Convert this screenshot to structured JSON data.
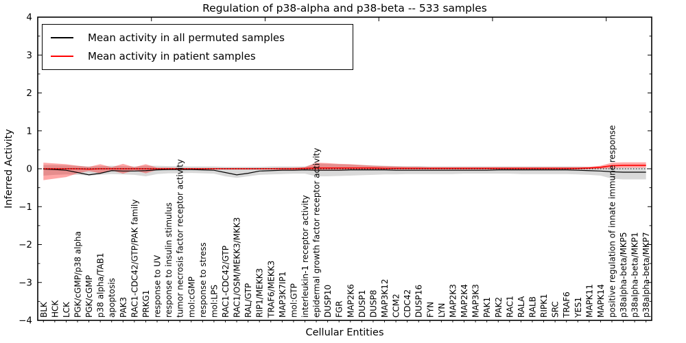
{
  "figure": {
    "title": "Regulation of p38-alpha and p38-beta -- 533 samples",
    "xlabel": "Cellular Entities",
    "ylabel": "Inferred Activity"
  },
  "legend": {
    "entries": [
      {
        "label": "Mean activity in all permuted samples",
        "color": "#000000"
      },
      {
        "label": "Mean activity in patient samples",
        "color": "#ff0000"
      }
    ]
  },
  "colors": {
    "permuted_line": "#000000",
    "permuted_band": "#d9d9d9",
    "patient_line": "#ff0000",
    "patient_band": "#ff0000",
    "baseline": "#000000",
    "frame": "#000000"
  },
  "chart_data": {
    "type": "line",
    "title": "Regulation of p38-alpha and p38-beta -- 533 samples",
    "xlabel": "Cellular Entities",
    "ylabel": "Inferred Activity",
    "ylim": [
      -4,
      4
    ],
    "yticks": [
      -4,
      -3,
      -2,
      -1,
      0,
      1,
      2,
      3,
      4
    ],
    "grid": false,
    "legend_position": "upper left",
    "baseline": {
      "y": 0,
      "style": "dotted",
      "color": "#000000"
    },
    "categories": [
      "BLK",
      "HCK",
      "LCK",
      "PGK/cGMP/p38 alpha",
      "PGK/cGMP",
      "p38 alpha/TAB1",
      "apoptosis",
      "PAK3",
      "RAC1-CDC42/GTP/PAK family",
      "PRKG1",
      "response to UV",
      "response to insulin stimulus",
      "tumor necrosis factor receptor activity",
      "mol:cGMP",
      "response to stress",
      "mol:LPS",
      "RAC1-CDC42/GTP",
      "RAC1/OSM/MEKK3/MKK3",
      "RAL/GTP",
      "RIP1/MEKK3",
      "TRAF6/MEKK3",
      "MAP3K7IP1",
      "mol:GTP",
      "interleukin-1 receptor activity",
      "epidermal growth factor receptor activity",
      "DUSP10",
      "FGR",
      "MAP2K6",
      "DUSP1",
      "DUSP8",
      "MAP3K12",
      "CCM2",
      "CDC42",
      "DUSP16",
      "FYN",
      "LYN",
      "MAP2K3",
      "MAP2K4",
      "MAP3K3",
      "PAK1",
      "PAK2",
      "RAC1",
      "RALA",
      "RALB",
      "RIPK1",
      "SRC",
      "TRAF6",
      "YES1",
      "MAPK11",
      "MAPK14",
      "positive regulation of innate immune response",
      "p38alpha-beta/MKP5",
      "p38alpha-beta/MKP1",
      "p38alpha-beta/MKP7"
    ],
    "series": [
      {
        "name": "Mean activity in all permuted samples",
        "color": "#000000",
        "values": [
          -0.01,
          -0.02,
          -0.04,
          -0.1,
          -0.16,
          -0.12,
          -0.05,
          -0.06,
          -0.06,
          -0.05,
          -0.03,
          -0.02,
          -0.02,
          -0.02,
          -0.03,
          -0.04,
          -0.1,
          -0.16,
          -0.12,
          -0.06,
          -0.05,
          -0.04,
          -0.04,
          -0.03,
          -0.04,
          -0.04,
          -0.04,
          -0.03,
          -0.03,
          -0.03,
          -0.03,
          -0.04,
          -0.04,
          -0.04,
          -0.04,
          -0.04,
          -0.04,
          -0.04,
          -0.04,
          -0.04,
          -0.03,
          -0.03,
          -0.03,
          -0.03,
          -0.03,
          -0.03,
          -0.03,
          -0.04,
          -0.05,
          -0.06,
          -0.08,
          -0.09,
          -0.09,
          -0.09
        ],
        "band_upper": [
          0.1,
          0.1,
          0.09,
          0.08,
          0.06,
          0.07,
          0.08,
          0.07,
          0.06,
          0.08,
          0.08,
          0.07,
          0.07,
          0.06,
          0.06,
          0.06,
          0.05,
          0.05,
          0.05,
          0.05,
          0.06,
          0.06,
          0.06,
          0.06,
          0.14,
          0.13,
          0.12,
          0.11,
          0.1,
          0.09,
          0.08,
          0.07,
          0.07,
          0.07,
          0.06,
          0.06,
          0.06,
          0.06,
          0.06,
          0.06,
          0.06,
          0.06,
          0.06,
          0.06,
          0.06,
          0.06,
          0.06,
          0.06,
          0.05,
          0.04,
          0.03,
          0.03,
          0.03,
          0.03
        ],
        "band_lower": [
          -0.18,
          -0.16,
          -0.15,
          -0.16,
          -0.18,
          -0.16,
          -0.14,
          -0.15,
          -0.16,
          -0.2,
          -0.14,
          -0.12,
          -0.12,
          -0.11,
          -0.12,
          -0.13,
          -0.2,
          -0.24,
          -0.2,
          -0.16,
          -0.15,
          -0.14,
          -0.13,
          -0.13,
          -0.2,
          -0.2,
          -0.19,
          -0.18,
          -0.17,
          -0.16,
          -0.15,
          -0.15,
          -0.14,
          -0.14,
          -0.14,
          -0.14,
          -0.14,
          -0.13,
          -0.13,
          -0.13,
          -0.13,
          -0.13,
          -0.14,
          -0.14,
          -0.14,
          -0.14,
          -0.14,
          -0.15,
          -0.16,
          -0.18,
          -0.26,
          -0.28,
          -0.28,
          -0.28
        ]
      },
      {
        "name": "Mean activity in patient samples",
        "color": "#ff0000",
        "values": [
          0.0,
          0.0,
          0.0,
          0.0,
          -0.01,
          0.0,
          0.0,
          0.0,
          0.0,
          0.0,
          0.0,
          0.0,
          0.0,
          0.0,
          0.0,
          0.0,
          0.0,
          0.0,
          0.0,
          0.0,
          0.0,
          0.0,
          0.0,
          0.01,
          0.02,
          0.02,
          0.02,
          0.02,
          0.02,
          0.02,
          0.01,
          0.01,
          0.01,
          0.01,
          0.01,
          0.01,
          0.01,
          0.01,
          0.01,
          0.01,
          0.01,
          0.01,
          0.01,
          0.01,
          0.01,
          0.01,
          0.01,
          0.01,
          0.02,
          0.04,
          0.08,
          0.09,
          0.09,
          0.09
        ],
        "band_upper": [
          0.16,
          0.14,
          0.12,
          0.08,
          0.05,
          0.12,
          0.04,
          0.13,
          0.04,
          0.12,
          0.03,
          0.03,
          0.02,
          0.02,
          0.02,
          0.02,
          0.02,
          0.02,
          0.02,
          0.02,
          0.02,
          0.03,
          0.03,
          0.04,
          0.16,
          0.15,
          0.13,
          0.12,
          0.1,
          0.08,
          0.07,
          0.06,
          0.05,
          0.05,
          0.04,
          0.04,
          0.04,
          0.04,
          0.04,
          0.04,
          0.04,
          0.04,
          0.04,
          0.04,
          0.04,
          0.04,
          0.04,
          0.04,
          0.05,
          0.08,
          0.16,
          0.17,
          0.17,
          0.17
        ],
        "band_lower": [
          -0.3,
          -0.26,
          -0.22,
          -0.12,
          -0.06,
          -0.12,
          -0.04,
          -0.13,
          -0.04,
          -0.12,
          -0.03,
          -0.03,
          -0.02,
          -0.02,
          -0.02,
          -0.02,
          -0.02,
          -0.02,
          -0.02,
          -0.02,
          -0.02,
          -0.03,
          -0.03,
          -0.03,
          -0.04,
          -0.03,
          -0.03,
          -0.02,
          -0.02,
          -0.02,
          -0.02,
          -0.02,
          -0.02,
          -0.02,
          -0.02,
          -0.02,
          -0.02,
          -0.02,
          -0.02,
          -0.02,
          -0.02,
          -0.02,
          -0.02,
          -0.02,
          -0.02,
          -0.02,
          -0.02,
          -0.02,
          -0.01,
          0.0,
          0.02,
          0.03,
          0.03,
          0.03
        ]
      }
    ]
  }
}
